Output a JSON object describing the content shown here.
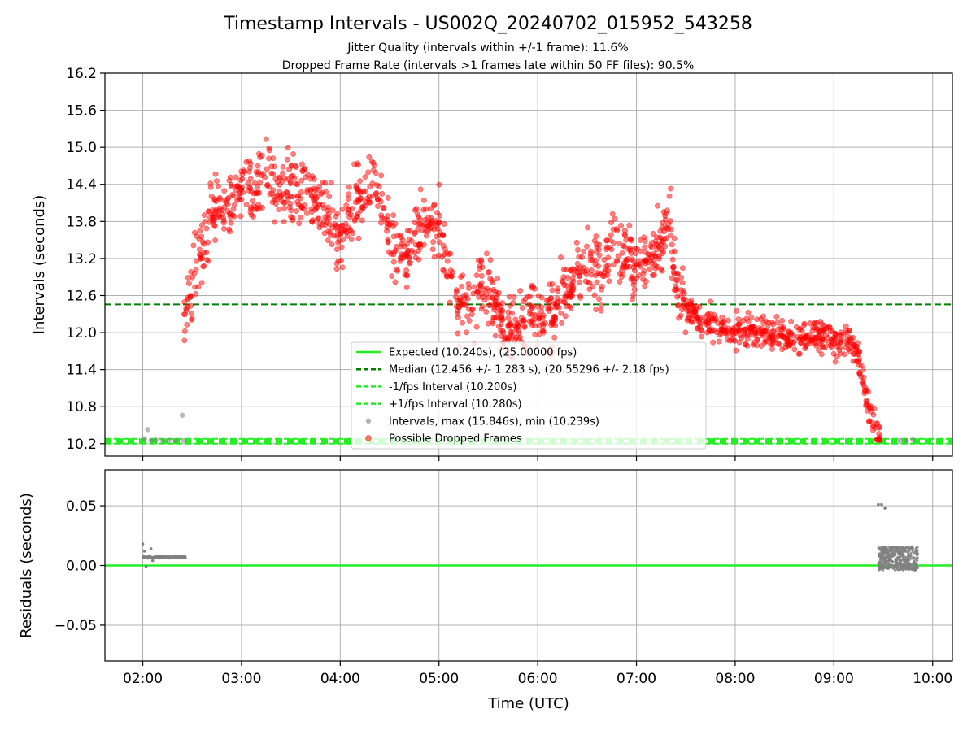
{
  "header": {
    "title": "Timestamp Intervals - US002Q_20240702_015952_543258",
    "subtitle_1": "Jitter Quality (intervals within +/-1 frame): 11.6%",
    "subtitle_2": "Dropped Frame Rate (intervals >1 frames late within 50 FF files): 90.5%"
  },
  "colors": {
    "expected": "#22ee22",
    "median": "#008000",
    "bounds": "#22ee22",
    "intervals": "#808080",
    "dropped": "#ff0000",
    "grid": "#b0b0b0",
    "axis": "#000000"
  },
  "chart_data": [
    {
      "type": "scatter",
      "panel": "intervals",
      "ylabel": "Intervals (seconds)",
      "xlabel": "",
      "ylim": [
        10.0,
        16.2
      ],
      "yticks": [
        10.2,
        10.8,
        11.4,
        12.0,
        12.6,
        13.2,
        13.8,
        14.4,
        15.0,
        15.6,
        16.2
      ],
      "ytick_labels": [
        "10.2",
        "10.8",
        "11.4",
        "12.0",
        "12.6",
        "13.2",
        "13.8",
        "14.4",
        "15.0",
        "15.6",
        "16.2"
      ],
      "xlim": [
        "01:37",
        "10:12"
      ],
      "xticks": [
        "02:00",
        "03:00",
        "04:00",
        "05:00",
        "06:00",
        "07:00",
        "08:00",
        "09:00",
        "10:00"
      ],
      "grid": true,
      "legend_position": "lower-center",
      "reference_lines": [
        {
          "name": "Expected (10.240s), (25.00000 fps)",
          "y": 10.24,
          "style": "solid",
          "color": "#22ee22"
        },
        {
          "name": "Median (12.456 +/- 1.283 s), (20.55296 +/- 2.18 fps)",
          "y": 12.456,
          "style": "dashed",
          "color": "#008000"
        },
        {
          "name": "-1/fps Interval (10.200s)",
          "y": 10.2,
          "style": "dashed",
          "color": "#22ee22"
        },
        {
          "name": "+1/fps Interval (10.280s)",
          "y": 10.28,
          "style": "dashed",
          "color": "#22ee22"
        }
      ],
      "legend": [
        "Expected (10.240s), (25.00000 fps)",
        "Median (12.456 +/- 1.283 s), (20.55296 +/- 2.18 fps)",
        "-1/fps Interval (10.200s)",
        "+1/fps Interval (10.280s)",
        "Intervals, max (15.846s), min (10.239s)",
        "Possible Dropped Frames"
      ],
      "series": [
        {
          "name": "Intervals, max (15.846s), min (10.239s)",
          "color": "#808080",
          "points": [
            [
              "02:01",
              10.28
            ],
            [
              "02:03",
              10.43
            ],
            [
              "02:05",
              10.25
            ],
            [
              "02:08",
              10.26
            ],
            [
              "02:12",
              10.25
            ],
            [
              "02:16",
              10.25
            ],
            [
              "02:20",
              10.25
            ],
            [
              "02:24",
              10.66
            ],
            [
              "02:25",
              10.25
            ],
            [
              "09:40",
              10.25
            ],
            [
              "09:44",
              10.25
            ],
            [
              "09:48",
              10.26
            ]
          ]
        },
        {
          "name": "Possible Dropped Frames",
          "color": "#ff0000",
          "trend": [
            [
              "02:25",
              12.3
            ],
            [
              "02:30",
              12.8
            ],
            [
              "02:40",
              13.8
            ],
            [
              "02:50",
              14.1
            ],
            [
              "03:00",
              14.3
            ],
            [
              "03:10",
              14.4
            ],
            [
              "03:20",
              14.5
            ],
            [
              "03:30",
              14.3
            ],
            [
              "03:40",
              14.3
            ],
            [
              "03:50",
              13.9
            ],
            [
              "04:00",
              13.6
            ],
            [
              "04:10",
              14.1
            ],
            [
              "04:20",
              14.4
            ],
            [
              "04:25",
              14.2
            ],
            [
              "04:30",
              13.6
            ],
            [
              "04:40",
              13.2
            ],
            [
              "04:50",
              13.8
            ],
            [
              "05:00",
              13.7
            ],
            [
              "05:05",
              13.0
            ],
            [
              "05:10",
              12.5
            ],
            [
              "05:20",
              12.3
            ],
            [
              "05:25",
              12.9
            ],
            [
              "05:30",
              12.7
            ],
            [
              "05:40",
              12.1
            ],
            [
              "05:50",
              12.2
            ],
            [
              "06:00",
              12.3
            ],
            [
              "06:10",
              12.3
            ],
            [
              "06:20",
              12.8
            ],
            [
              "06:30",
              13.1
            ],
            [
              "06:40",
              13.0
            ],
            [
              "06:45",
              13.6
            ],
            [
              "06:50",
              13.3
            ],
            [
              "07:00",
              13.0
            ],
            [
              "07:10",
              13.2
            ],
            [
              "07:20",
              13.9
            ],
            [
              "07:25",
              12.6
            ],
            [
              "07:30",
              12.4
            ],
            [
              "07:40",
              12.2
            ],
            [
              "07:50",
              12.1
            ],
            [
              "08:00",
              12.0
            ],
            [
              "08:20",
              12.0
            ],
            [
              "08:40",
              11.95
            ],
            [
              "09:00",
              11.9
            ],
            [
              "09:10",
              11.85
            ],
            [
              "09:15",
              11.6
            ],
            [
              "09:20",
              10.9
            ],
            [
              "09:25",
              10.5
            ],
            [
              "09:28",
              10.26
            ]
          ],
          "spread": 0.35,
          "point_count": 1600
        }
      ]
    },
    {
      "type": "scatter",
      "panel": "residuals",
      "ylabel": "Residuals (seconds)",
      "xlabel": "Time (UTC)",
      "ylim": [
        -0.08,
        0.08
      ],
      "yticks": [
        -0.05,
        0.0,
        0.05
      ],
      "ytick_labels": [
        "−0.05",
        "0.00",
        "0.05"
      ],
      "xlim": [
        "01:37",
        "10:12"
      ],
      "xticks": [
        "02:00",
        "03:00",
        "04:00",
        "05:00",
        "06:00",
        "07:00",
        "08:00",
        "09:00",
        "10:00"
      ],
      "xtick_labels": [
        "02:00",
        "03:00",
        "04:00",
        "05:00",
        "06:00",
        "07:00",
        "08:00",
        "09:00",
        "10:00"
      ],
      "grid": true,
      "reference_lines": [
        {
          "name": "zero",
          "y": 0.0,
          "style": "solid",
          "color": "#22ee22"
        }
      ],
      "series": [
        {
          "name": "residuals",
          "color": "#808080",
          "clusters": [
            {
              "from": "02:00",
              "to": "02:26",
              "base": 0.007,
              "spread": 0.002
            },
            {
              "from": "09:27",
              "to": "09:51",
              "base": 0.006,
              "spread": 0.01
            }
          ],
          "outliers": [
            [
              "02:00",
              0.018
            ],
            [
              "02:01",
              0.012
            ],
            [
              "02:02",
              -0.001
            ],
            [
              "02:05",
              0.014
            ],
            [
              "02:06",
              0.004
            ],
            [
              "09:27",
              0.051
            ],
            [
              "09:29",
              0.051
            ],
            [
              "09:31",
              0.048
            ]
          ]
        }
      ]
    }
  ]
}
